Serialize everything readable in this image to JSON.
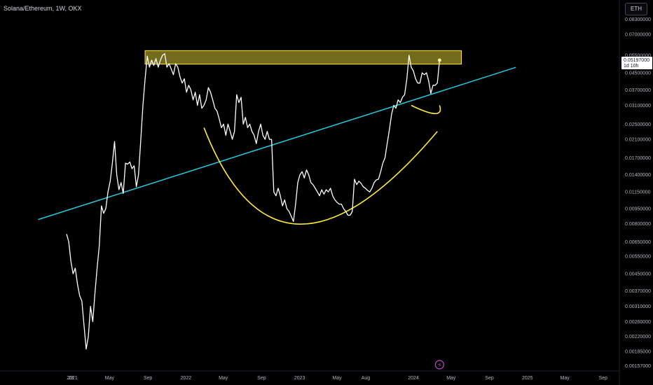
{
  "header": {
    "title": "Solana/Ethereum, 1W, OKX"
  },
  "currency_button": "ETH",
  "price_label": {
    "value": "0.05197000",
    "countdown": "1d 10h"
  },
  "colors": {
    "background": "#000000",
    "price_line": "#ffffff",
    "trendline": "#26c6da",
    "resistance_zone": "#ffeb3b",
    "arc": "#ffeb3b",
    "axis_text": "#b2b5be"
  },
  "icons": {
    "bottom_marker": "lightning-icon"
  },
  "chart_data": {
    "type": "line",
    "title": "Solana/Ethereum, 1W, OKX",
    "y_scale": "log",
    "ylim": [
      0.0015,
      0.09
    ],
    "y_ticks": [
      "0.08300000",
      "0.07000000",
      "0.05500000",
      "0.04500000",
      "0.03700000",
      "0.03100000",
      "0.02500000",
      "0.02100000",
      "0.01700000",
      "0.01400000",
      "0.01150000",
      "0.00950000",
      "0.00800000",
      "0.00650000",
      "0.00550000",
      "0.00450000",
      "0.00370000",
      "0.00310000",
      "0.00260000",
      "0.00220000",
      "0.00185000",
      "0.00157000"
    ],
    "x_ticks": [
      {
        "date": "2020-12-28",
        "label": "28"
      },
      {
        "date": "2021-01-01",
        "label": "2021"
      },
      {
        "date": "2021-05-01",
        "label": "May"
      },
      {
        "date": "2021-09-01",
        "label": "Sep"
      },
      {
        "date": "2022-01-01",
        "label": "2022"
      },
      {
        "date": "2022-05-01",
        "label": "May"
      },
      {
        "date": "2022-09-01",
        "label": "Sep"
      },
      {
        "date": "2023-01-01",
        "label": "2023"
      },
      {
        "date": "2023-05-01",
        "label": "May"
      },
      {
        "date": "2023-08-01",
        "label": "Aug"
      },
      {
        "date": "2024-01-01",
        "label": "2024"
      },
      {
        "date": "2024-05-01",
        "label": "May"
      },
      {
        "date": "2024-09-01",
        "label": "Sep"
      },
      {
        "date": "2025-01-01",
        "label": "2025"
      },
      {
        "date": "2025-05-01",
        "label": "May"
      },
      {
        "date": "2025-09-01",
        "label": "Sep"
      }
    ],
    "series": [
      {
        "points": [
          [
            "2020-12-14",
            0.0071
          ],
          [
            "2020-12-21",
            0.0065
          ],
          [
            "2020-12-28",
            0.0052
          ],
          [
            "2021-01-04",
            0.0045
          ],
          [
            "2021-01-11",
            0.0048
          ],
          [
            "2021-01-18",
            0.004
          ],
          [
            "2021-01-25",
            0.0035
          ],
          [
            "2021-02-01",
            0.0033
          ],
          [
            "2021-02-08",
            0.0025
          ],
          [
            "2021-02-15",
            0.0019
          ],
          [
            "2021-02-22",
            0.0022
          ],
          [
            "2021-03-01",
            0.0031
          ],
          [
            "2021-03-08",
            0.0026
          ],
          [
            "2021-03-15",
            0.0036
          ],
          [
            "2021-03-22",
            0.0048
          ],
          [
            "2021-03-29",
            0.0062
          ],
          [
            "2021-04-05",
            0.0098
          ],
          [
            "2021-04-12",
            0.009
          ],
          [
            "2021-04-19",
            0.0095
          ],
          [
            "2021-04-26",
            0.0115
          ],
          [
            "2021-05-03",
            0.013
          ],
          [
            "2021-05-10",
            0.016
          ],
          [
            "2021-05-17",
            0.0205
          ],
          [
            "2021-05-24",
            0.014
          ],
          [
            "2021-05-31",
            0.0118
          ],
          [
            "2021-06-07",
            0.0128
          ],
          [
            "2021-06-14",
            0.0113
          ],
          [
            "2021-06-21",
            0.016
          ],
          [
            "2021-06-28",
            0.0158
          ],
          [
            "2021-07-05",
            0.0162
          ],
          [
            "2021-07-12",
            0.015
          ],
          [
            "2021-07-19",
            0.0155
          ],
          [
            "2021-07-26",
            0.0122
          ],
          [
            "2021-08-02",
            0.014
          ],
          [
            "2021-08-09",
            0.0205
          ],
          [
            "2021-08-16",
            0.031
          ],
          [
            "2021-08-23",
            0.042
          ],
          [
            "2021-08-30",
            0.0545
          ],
          [
            "2021-09-06",
            0.048
          ],
          [
            "2021-09-13",
            0.052
          ],
          [
            "2021-09-20",
            0.049
          ],
          [
            "2021-09-27",
            0.053
          ],
          [
            "2021-10-04",
            0.048
          ],
          [
            "2021-10-11",
            0.052
          ],
          [
            "2021-10-18",
            0.055
          ],
          [
            "2021-10-25",
            0.056
          ],
          [
            "2021-11-01",
            0.048
          ],
          [
            "2021-11-08",
            0.05
          ],
          [
            "2021-11-15",
            0.047
          ],
          [
            "2021-11-22",
            0.044
          ],
          [
            "2021-11-29",
            0.05
          ],
          [
            "2021-12-06",
            0.048
          ],
          [
            "2021-12-13",
            0.043
          ],
          [
            "2021-12-20",
            0.04
          ],
          [
            "2021-12-27",
            0.042
          ],
          [
            "2022-01-03",
            0.036
          ],
          [
            "2022-01-10",
            0.039
          ],
          [
            "2022-01-17",
            0.037
          ],
          [
            "2022-01-24",
            0.033
          ],
          [
            "2022-01-31",
            0.036
          ],
          [
            "2022-02-07",
            0.031
          ],
          [
            "2022-02-14",
            0.035
          ],
          [
            "2022-02-21",
            0.03
          ],
          [
            "2022-02-28",
            0.031
          ],
          [
            "2022-03-07",
            0.033
          ],
          [
            "2022-03-14",
            0.038
          ],
          [
            "2022-03-21",
            0.036
          ],
          [
            "2022-03-28",
            0.033
          ],
          [
            "2022-04-04",
            0.03
          ],
          [
            "2022-04-11",
            0.029
          ],
          [
            "2022-04-18",
            0.0265
          ],
          [
            "2022-04-25",
            0.024
          ],
          [
            "2022-05-02",
            0.025
          ],
          [
            "2022-05-09",
            0.022
          ],
          [
            "2022-05-16",
            0.025
          ],
          [
            "2022-05-23",
            0.023
          ],
          [
            "2022-05-30",
            0.021
          ],
          [
            "2022-06-06",
            0.023
          ],
          [
            "2022-06-13",
            0.035
          ],
          [
            "2022-06-20",
            0.032
          ],
          [
            "2022-06-27",
            0.034
          ],
          [
            "2022-07-04",
            0.025
          ],
          [
            "2022-07-11",
            0.027
          ],
          [
            "2022-07-18",
            0.024
          ],
          [
            "2022-07-25",
            0.025
          ],
          [
            "2022-08-01",
            0.023
          ],
          [
            "2022-08-08",
            0.022
          ],
          [
            "2022-08-15",
            0.02
          ],
          [
            "2022-08-22",
            0.023
          ],
          [
            "2022-08-29",
            0.025
          ],
          [
            "2022-09-05",
            0.022
          ],
          [
            "2022-09-12",
            0.021
          ],
          [
            "2022-09-19",
            0.023
          ],
          [
            "2022-09-26",
            0.021
          ],
          [
            "2022-10-03",
            0.021
          ],
          [
            "2022-10-10",
            0.0115
          ],
          [
            "2022-10-17",
            0.011
          ],
          [
            "2022-10-24",
            0.012
          ],
          [
            "2022-10-31",
            0.011
          ],
          [
            "2022-11-07",
            0.0098
          ],
          [
            "2022-11-14",
            0.0105
          ],
          [
            "2022-11-21",
            0.0095
          ],
          [
            "2022-11-28",
            0.0092
          ],
          [
            "2022-12-05",
            0.0087
          ],
          [
            "2022-12-12",
            0.0082
          ],
          [
            "2022-12-19",
            0.01
          ],
          [
            "2022-12-26",
            0.0128
          ],
          [
            "2023-01-02",
            0.014
          ],
          [
            "2023-01-09",
            0.0145
          ],
          [
            "2023-01-16",
            0.0135
          ],
          [
            "2023-01-23",
            0.0148
          ],
          [
            "2023-01-30",
            0.014
          ],
          [
            "2023-02-06",
            0.0128
          ],
          [
            "2023-02-13",
            0.0125
          ],
          [
            "2023-02-20",
            0.012
          ],
          [
            "2023-02-27",
            0.0115
          ],
          [
            "2023-03-06",
            0.011
          ],
          [
            "2023-03-13",
            0.0118
          ],
          [
            "2023-03-20",
            0.0112
          ],
          [
            "2023-03-27",
            0.0118
          ],
          [
            "2023-04-03",
            0.0115
          ],
          [
            "2023-04-10",
            0.012
          ],
          [
            "2023-04-17",
            0.011
          ],
          [
            "2023-04-24",
            0.0105
          ],
          [
            "2023-05-01",
            0.0102
          ],
          [
            "2023-05-08",
            0.01
          ],
          [
            "2023-05-15",
            0.01
          ],
          [
            "2023-05-22",
            0.0095
          ],
          [
            "2023-05-29",
            0.0092
          ],
          [
            "2023-06-05",
            0.0088
          ],
          [
            "2023-06-12",
            0.0088
          ],
          [
            "2023-06-19",
            0.0092
          ],
          [
            "2023-06-26",
            0.0133
          ],
          [
            "2023-07-03",
            0.0125
          ],
          [
            "2023-07-10",
            0.013
          ],
          [
            "2023-07-17",
            0.0127
          ],
          [
            "2023-07-24",
            0.0122
          ],
          [
            "2023-07-31",
            0.012
          ],
          [
            "2023-08-07",
            0.0117
          ],
          [
            "2023-08-14",
            0.0115
          ],
          [
            "2023-08-21",
            0.012
          ],
          [
            "2023-08-28",
            0.0128
          ],
          [
            "2023-09-04",
            0.0132
          ],
          [
            "2023-09-11",
            0.0133
          ],
          [
            "2023-09-18",
            0.0145
          ],
          [
            "2023-09-25",
            0.016
          ],
          [
            "2023-10-02",
            0.017
          ],
          [
            "2023-10-09",
            0.02
          ],
          [
            "2023-10-16",
            0.0235
          ],
          [
            "2023-10-23",
            0.028
          ],
          [
            "2023-10-30",
            0.031
          ],
          [
            "2023-11-06",
            0.03
          ],
          [
            "2023-11-13",
            0.033
          ],
          [
            "2023-11-20",
            0.032
          ],
          [
            "2023-11-27",
            0.034
          ],
          [
            "2023-12-04",
            0.035
          ],
          [
            "2023-12-11",
            0.042
          ],
          [
            "2023-12-18",
            0.055
          ],
          [
            "2023-12-25",
            0.048
          ],
          [
            "2024-01-01",
            0.046
          ],
          [
            "2024-01-08",
            0.042
          ],
          [
            "2024-01-15",
            0.04
          ],
          [
            "2024-01-22",
            0.04
          ],
          [
            "2024-01-29",
            0.045
          ],
          [
            "2024-02-05",
            0.044
          ],
          [
            "2024-02-12",
            0.045
          ],
          [
            "2024-02-19",
            0.041
          ],
          [
            "2024-02-26",
            0.0355
          ],
          [
            "2024-03-04",
            0.039
          ],
          [
            "2024-03-11",
            0.039
          ],
          [
            "2024-03-18",
            0.04
          ],
          [
            "2024-03-25",
            0.05197
          ]
        ]
      }
    ],
    "annotations": {
      "resistance_zone": {
        "from": "2021-08-23",
        "to": "2024-06-03",
        "y_low": 0.0497,
        "y_high": 0.058
      },
      "trendline": {
        "start": [
          "2020-09-14",
          0.00838
        ],
        "end": [
          "2024-11-25",
          0.0479
        ]
      },
      "bottom_arc": {
        "start": [
          "2022-02-28",
          0.024
        ],
        "bottom": [
          "2023-01-01",
          0.00795
        ],
        "end": [
          "2024-03-18",
          0.023
        ]
      },
      "handle_arc": {
        "start": [
          "2023-12-25",
          0.031
        ],
        "bottom": [
          "2024-03-11",
          0.0282
        ],
        "end": [
          "2024-03-25",
          0.031
        ]
      }
    }
  }
}
